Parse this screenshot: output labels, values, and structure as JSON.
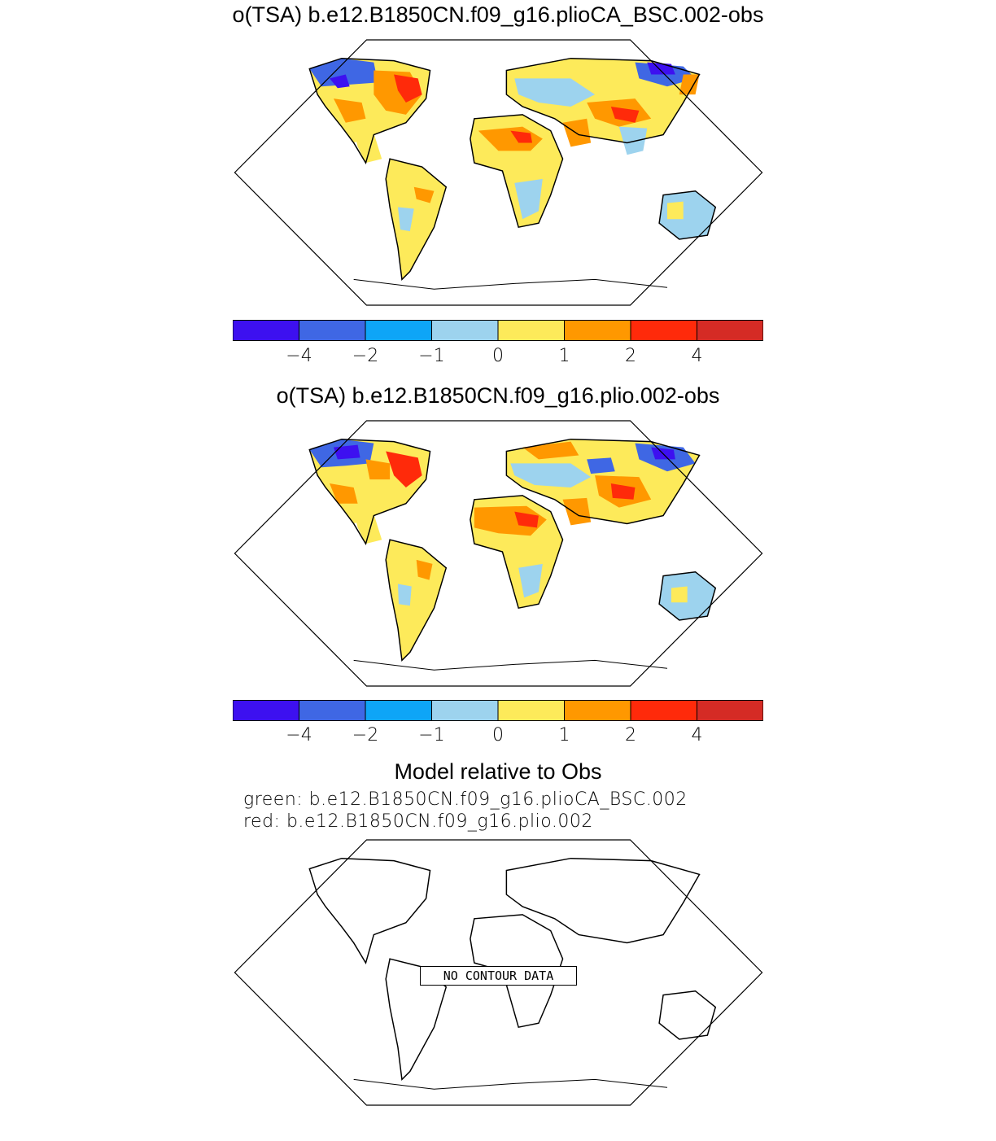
{
  "panels": [
    {
      "title": "o(TSA) b.e12.B1850CN.f09_g16.plioCA_BSC.002-obs",
      "colorbar": {
        "colors": [
          "#3d10f0",
          "#3f67e4",
          "#0ea5f7",
          "#9dd3ee",
          "#fdea5a",
          "#ff9800",
          "#ff2a0a",
          "#d52b25"
        ],
        "tick_labels": [
          "−4",
          "−2",
          "−1",
          "0",
          "1",
          "2",
          "4"
        ]
      }
    },
    {
      "title": "o(TSA) b.e12.B1850CN.f09_g16.plio.002-obs",
      "colorbar": {
        "colors": [
          "#3d10f0",
          "#3f67e4",
          "#0ea5f7",
          "#9dd3ee",
          "#fdea5a",
          "#ff9800",
          "#ff2a0a",
          "#d52b25"
        ],
        "tick_labels": [
          "−4",
          "−2",
          "−1",
          "0",
          "1",
          "2",
          "4"
        ]
      }
    },
    {
      "title": "Model relative to Obs",
      "lines": [
        "green: b.e12.B1850CN.f09_g16.plioCA_BSC.002",
        "red: b.e12.B1850CN.f09_g16.plio.002"
      ],
      "message": "NO CONTOUR DATA"
    }
  ]
}
